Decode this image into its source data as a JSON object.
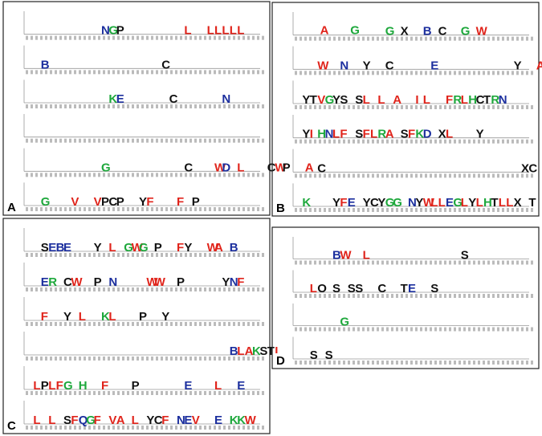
{
  "panels": [
    {
      "label": "A",
      "rows": [
        "          NGP        L  LLLLL          A   G",
        "  B               C",
        "           KE      C      N",
        "",
        "          G          C   WD L   CWP  A",
        "  G   V  VPCP  YF   F P"
      ]
    },
    {
      "label": "B",
      "rows": [
        "            G X  B C  G W",
        "   W  N  Y  C     E          Y  A",
        " YTVGYS SL L A  IL  FRLHCTRN",
        " YIHNLF SFLRA SFKD XL   Y",
        "   C                          XC",
        " K   YFE YCYGG NYWLLEGLYLHTLLX T"
      ]
    },
    {
      "label": "C",
      "rows": [
        "  SEBE   Y L GWG P  FY  WA B",
        "  ER CW  P N    WW  P     YNF",
        "  F  Y L  KL   P  Y",
        "                           BLAKSTL",
        " LPLFG H  F   P      E   L  E",
        " L L SFQGF VA L YCF NEV  E KKW"
      ]
    },
    {
      "label": "D",
      "rows": [
        "     BW  L            S",
        "  LO S SS  C  TE  S",
        "      G",
        "  S S"
      ]
    }
  ]
}
